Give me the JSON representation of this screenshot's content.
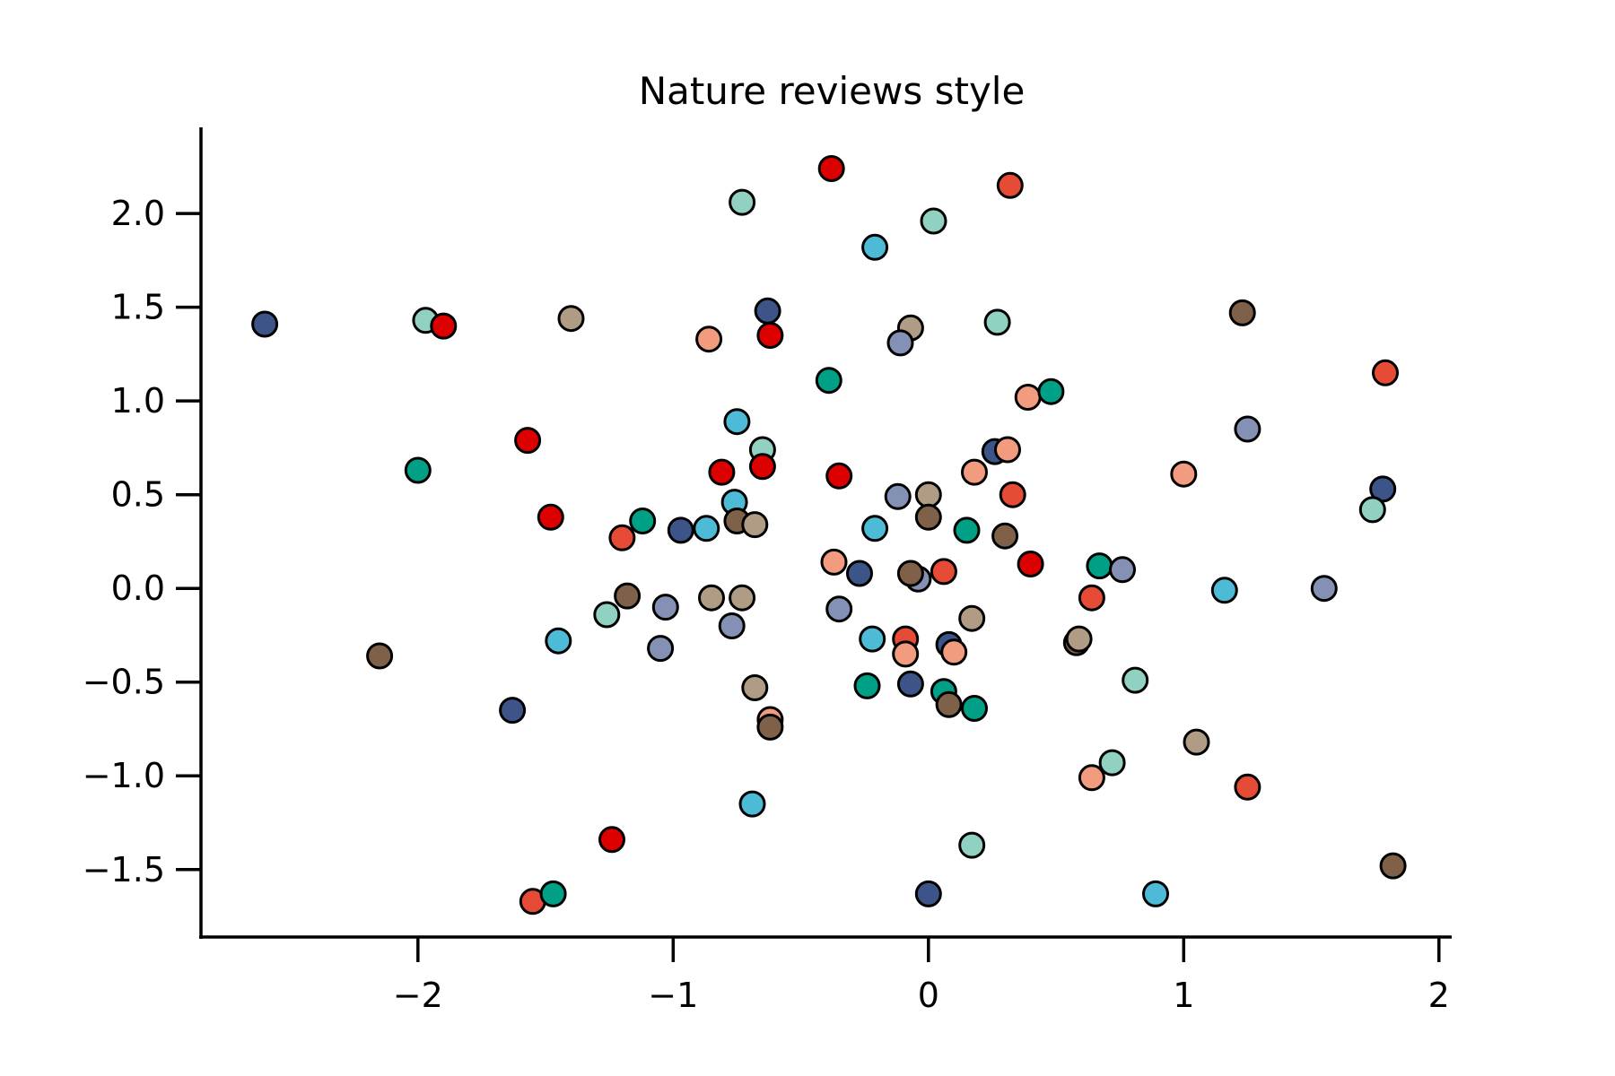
{
  "chart_data": {
    "type": "scatter",
    "title": "Nature reviews style",
    "xlabel": "",
    "ylabel": "",
    "xlim": [
      -2.85,
      2.05
    ],
    "ylim": [
      -1.86,
      2.46
    ],
    "xticks": [
      -2,
      -1,
      0,
      1,
      2
    ],
    "xtick_labels": [
      "−2",
      "−1",
      "0",
      "1",
      "2"
    ],
    "yticks": [
      -1.5,
      -1.0,
      -0.5,
      0.0,
      0.5,
      1.0,
      1.5,
      2.0
    ],
    "ytick_labels": [
      "−1.5",
      "−1.0",
      "−0.5",
      "0.0",
      "0.5",
      "1.0",
      "1.5",
      "2.0"
    ],
    "grid": false,
    "legend": "none",
    "palette": [
      "#E64B35",
      "#4DBBD5",
      "#00A087",
      "#3C5488",
      "#F39B7F",
      "#8491B4",
      "#91D1C2",
      "#DC0000",
      "#7E6148",
      "#B09C85"
    ],
    "edge_color": "#000000",
    "points": [
      {
        "x": -2.6,
        "y": 1.41,
        "c": 3
      },
      {
        "x": -1.97,
        "y": 1.43,
        "c": 6
      },
      {
        "x": -1.9,
        "y": 1.4,
        "c": 7
      },
      {
        "x": -1.4,
        "y": 1.44,
        "c": 9
      },
      {
        "x": -0.73,
        "y": 2.06,
        "c": 6
      },
      {
        "x": -0.38,
        "y": 2.24,
        "c": 7
      },
      {
        "x": 0.32,
        "y": 2.15,
        "c": 0
      },
      {
        "x": -0.21,
        "y": 1.82,
        "c": 1
      },
      {
        "x": 0.02,
        "y": 1.96,
        "c": 6
      },
      {
        "x": -0.86,
        "y": 1.33,
        "c": 4
      },
      {
        "x": -0.63,
        "y": 1.48,
        "c": 3
      },
      {
        "x": -0.62,
        "y": 1.35,
        "c": 7
      },
      {
        "x": -0.07,
        "y": 1.39,
        "c": 9
      },
      {
        "x": -0.11,
        "y": 1.31,
        "c": 5
      },
      {
        "x": 0.27,
        "y": 1.42,
        "c": 6
      },
      {
        "x": 1.23,
        "y": 1.47,
        "c": 8
      },
      {
        "x": 1.79,
        "y": 1.15,
        "c": 0
      },
      {
        "x": -0.39,
        "y": 1.11,
        "c": 2
      },
      {
        "x": 0.39,
        "y": 1.02,
        "c": 4
      },
      {
        "x": 0.48,
        "y": 1.05,
        "c": 2
      },
      {
        "x": -0.75,
        "y": 0.89,
        "c": 1
      },
      {
        "x": -0.65,
        "y": 0.74,
        "c": 6
      },
      {
        "x": -1.57,
        "y": 0.79,
        "c": 7
      },
      {
        "x": -2.0,
        "y": 0.63,
        "c": 2
      },
      {
        "x": -0.81,
        "y": 0.62,
        "c": 7
      },
      {
        "x": -0.65,
        "y": 0.65,
        "c": 7
      },
      {
        "x": -0.35,
        "y": 0.6,
        "c": 7
      },
      {
        "x": 0.26,
        "y": 0.73,
        "c": 3
      },
      {
        "x": 0.31,
        "y": 0.74,
        "c": 4
      },
      {
        "x": 1.25,
        "y": 0.85,
        "c": 5
      },
      {
        "x": 0.18,
        "y": 0.62,
        "c": 4
      },
      {
        "x": 0.33,
        "y": 0.5,
        "c": 0
      },
      {
        "x": 1.0,
        "y": 0.61,
        "c": 4
      },
      {
        "x": 1.78,
        "y": 0.53,
        "c": 3
      },
      {
        "x": 1.74,
        "y": 0.42,
        "c": 6
      },
      {
        "x": -1.48,
        "y": 0.38,
        "c": 7
      },
      {
        "x": -1.2,
        "y": 0.27,
        "c": 0
      },
      {
        "x": -1.12,
        "y": 0.36,
        "c": 2
      },
      {
        "x": -0.97,
        "y": 0.31,
        "c": 3
      },
      {
        "x": -0.87,
        "y": 0.32,
        "c": 1
      },
      {
        "x": -0.76,
        "y": 0.46,
        "c": 1
      },
      {
        "x": -0.75,
        "y": 0.36,
        "c": 8
      },
      {
        "x": -0.68,
        "y": 0.34,
        "c": 9
      },
      {
        "x": -0.12,
        "y": 0.49,
        "c": 5
      },
      {
        "x": 0.0,
        "y": 0.5,
        "c": 9
      },
      {
        "x": 0.0,
        "y": 0.38,
        "c": 8
      },
      {
        "x": -0.21,
        "y": 0.32,
        "c": 1
      },
      {
        "x": 0.15,
        "y": 0.31,
        "c": 2
      },
      {
        "x": 0.3,
        "y": 0.28,
        "c": 8
      },
      {
        "x": 0.4,
        "y": 0.13,
        "c": 7
      },
      {
        "x": -0.37,
        "y": 0.14,
        "c": 4
      },
      {
        "x": -0.27,
        "y": 0.08,
        "c": 3
      },
      {
        "x": -0.04,
        "y": 0.05,
        "c": 5
      },
      {
        "x": -0.07,
        "y": 0.08,
        "c": 8
      },
      {
        "x": 0.06,
        "y": 0.09,
        "c": 0
      },
      {
        "x": 0.67,
        "y": 0.12,
        "c": 2
      },
      {
        "x": 0.76,
        "y": 0.1,
        "c": 5
      },
      {
        "x": 1.16,
        "y": -0.01,
        "c": 1
      },
      {
        "x": 1.55,
        "y": 0.0,
        "c": 5
      },
      {
        "x": -1.18,
        "y": -0.04,
        "c": 8
      },
      {
        "x": -1.26,
        "y": -0.14,
        "c": 6
      },
      {
        "x": -1.03,
        "y": -0.1,
        "c": 5
      },
      {
        "x": -0.85,
        "y": -0.05,
        "c": 9
      },
      {
        "x": -0.73,
        "y": -0.05,
        "c": 9
      },
      {
        "x": -0.77,
        "y": -0.2,
        "c": 5
      },
      {
        "x": -0.35,
        "y": -0.11,
        "c": 5
      },
      {
        "x": 0.17,
        "y": -0.16,
        "c": 9
      },
      {
        "x": 0.64,
        "y": -0.05,
        "c": 0
      },
      {
        "x": -2.15,
        "y": -0.36,
        "c": 8
      },
      {
        "x": -1.45,
        "y": -0.28,
        "c": 1
      },
      {
        "x": -1.05,
        "y": -0.32,
        "c": 5
      },
      {
        "x": -0.22,
        "y": -0.27,
        "c": 1
      },
      {
        "x": -0.09,
        "y": -0.27,
        "c": 0
      },
      {
        "x": -0.09,
        "y": -0.35,
        "c": 4
      },
      {
        "x": 0.08,
        "y": -0.3,
        "c": 3
      },
      {
        "x": 0.1,
        "y": -0.34,
        "c": 4
      },
      {
        "x": 0.58,
        "y": -0.29,
        "c": 8
      },
      {
        "x": 0.59,
        "y": -0.27,
        "c": 9
      },
      {
        "x": -1.63,
        "y": -0.65,
        "c": 3
      },
      {
        "x": -0.68,
        "y": -0.53,
        "c": 9
      },
      {
        "x": -0.24,
        "y": -0.52,
        "c": 2
      },
      {
        "x": -0.07,
        "y": -0.51,
        "c": 3
      },
      {
        "x": 0.06,
        "y": -0.55,
        "c": 2
      },
      {
        "x": 0.08,
        "y": -0.62,
        "c": 8
      },
      {
        "x": 0.18,
        "y": -0.64,
        "c": 2
      },
      {
        "x": 0.81,
        "y": -0.49,
        "c": 6
      },
      {
        "x": -0.62,
        "y": -0.7,
        "c": 4
      },
      {
        "x": -0.62,
        "y": -0.74,
        "c": 8
      },
      {
        "x": 0.72,
        "y": -0.93,
        "c": 6
      },
      {
        "x": 0.64,
        "y": -1.01,
        "c": 4
      },
      {
        "x": 1.05,
        "y": -0.82,
        "c": 9
      },
      {
        "x": 1.25,
        "y": -1.06,
        "c": 0
      },
      {
        "x": -0.69,
        "y": -1.15,
        "c": 1
      },
      {
        "x": -1.24,
        "y": -1.34,
        "c": 7
      },
      {
        "x": 0.17,
        "y": -1.37,
        "c": 6
      },
      {
        "x": -1.55,
        "y": -1.67,
        "c": 0
      },
      {
        "x": -1.47,
        "y": -1.63,
        "c": 2
      },
      {
        "x": 0.0,
        "y": -1.63,
        "c": 3
      },
      {
        "x": 0.89,
        "y": -1.63,
        "c": 1
      },
      {
        "x": 1.82,
        "y": -1.48,
        "c": 8
      }
    ]
  }
}
